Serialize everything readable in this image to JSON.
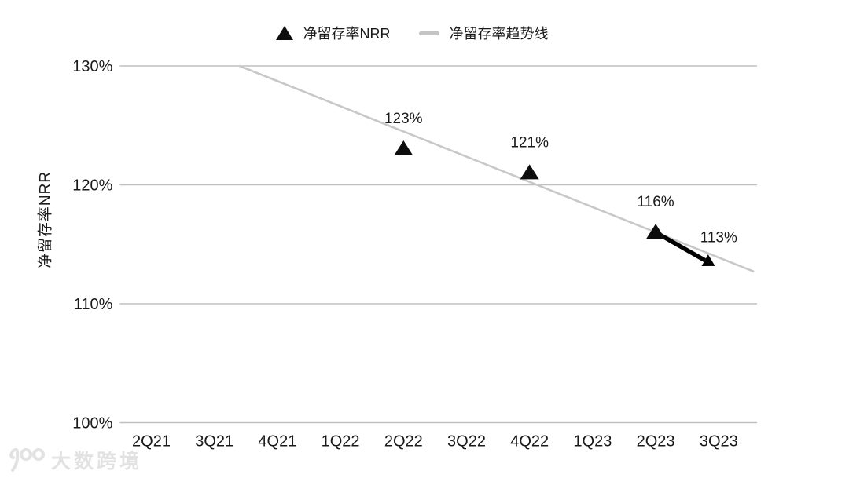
{
  "watermark": {
    "text": "大数跨境"
  },
  "colors": {
    "background": "#ffffff",
    "text": "#1a1a1a",
    "marker": "#0d0d0d",
    "trend_line": "#c8c8c8",
    "grid_line": "#c0c0c0",
    "arrow": "#000000",
    "watermark": "#e2e2e2"
  },
  "chart_data": {
    "type": "scatter",
    "title": "",
    "xlabel": "",
    "ylabel": "净留存率NRR",
    "categories": [
      "2Q21",
      "3Q21",
      "4Q21",
      "1Q22",
      "2Q22",
      "3Q22",
      "4Q22",
      "1Q23",
      "2Q23",
      "3Q23"
    ],
    "ylim": [
      100,
      130
    ],
    "yticks": [
      130,
      120,
      110,
      100
    ],
    "ytick_suffix": "%",
    "grid": "horizontal",
    "legend_position": "top",
    "series": [
      {
        "name": "净留存率NRR",
        "type": "scatter",
        "marker": "triangle",
        "points": [
          {
            "category": "2Q22",
            "value": 123,
            "label": "123%"
          },
          {
            "category": "4Q22",
            "value": 121,
            "label": "121%"
          },
          {
            "category": "2Q23",
            "value": 116,
            "label": "116%"
          },
          {
            "category": "3Q23",
            "value": 113,
            "label": "113%"
          }
        ]
      },
      {
        "name": "净留存率趋势线",
        "type": "trendline",
        "endpoints": [
          {
            "x_index": 1.4,
            "value": 130
          },
          {
            "x_index": 9.56,
            "value": 112.7
          }
        ]
      }
    ],
    "annotations": [
      {
        "type": "arrow",
        "from": {
          "category": "2Q23",
          "value": 116
        },
        "to": {
          "category": "3Q23",
          "value": 113
        }
      }
    ]
  }
}
